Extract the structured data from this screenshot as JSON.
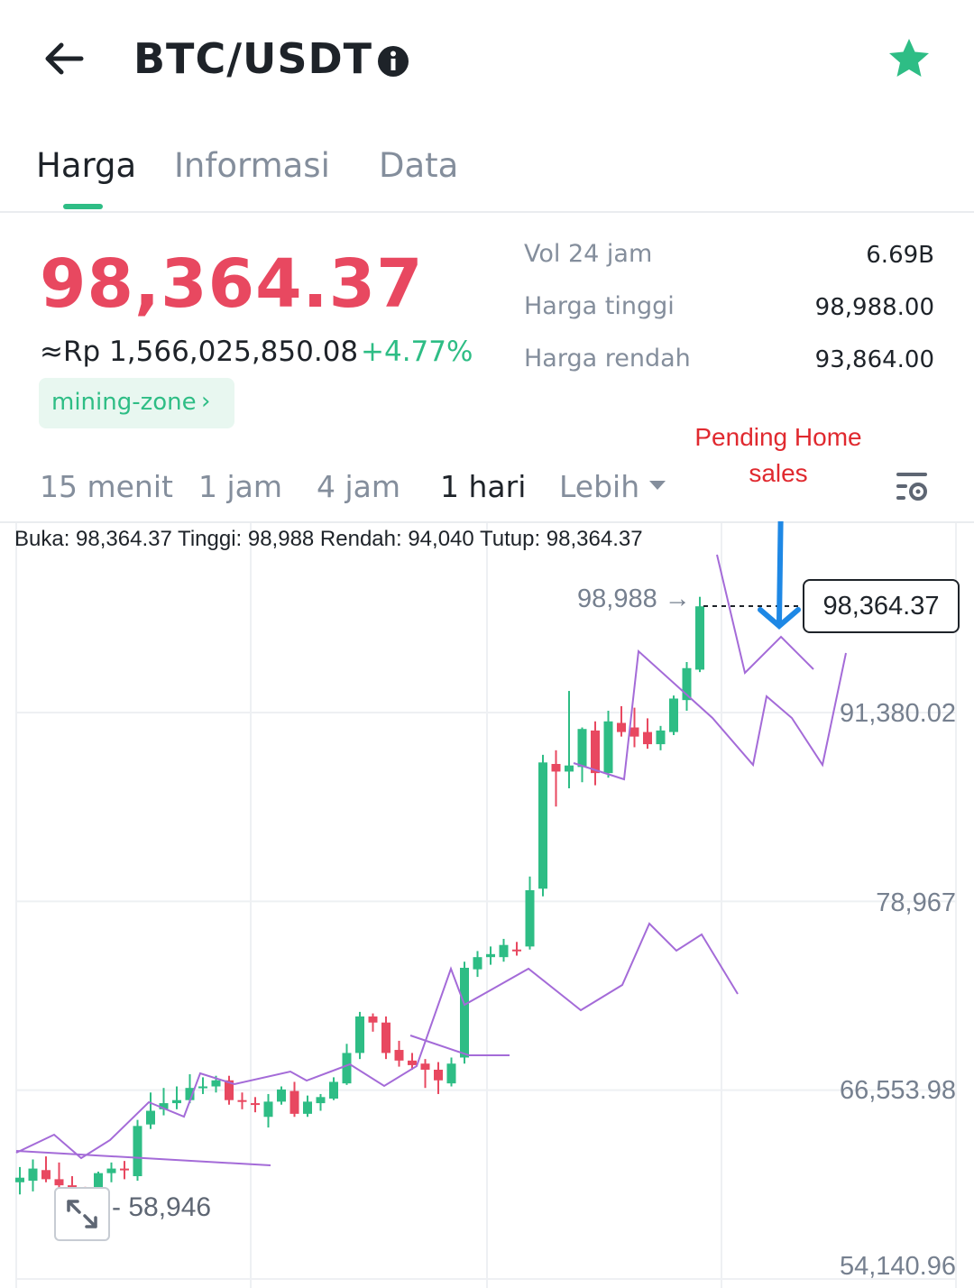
{
  "header": {
    "pair": "BTC/USDT",
    "icons": {
      "back": "arrow-left-icon",
      "info": "info-icon",
      "favorite": "star-icon"
    },
    "favorite_color": "#2ebd85"
  },
  "tabs": [
    {
      "label": "Harga",
      "active": true
    },
    {
      "label": "Informasi",
      "active": false
    },
    {
      "label": "Data",
      "active": false
    }
  ],
  "ticker": {
    "price": "98,364.37",
    "price_color": "#e84860",
    "idr_value": "≈Rp 1,566,025,850.08",
    "change_pct": "+4.77%",
    "change_color": "#2ebd85",
    "tag": "mining-zone",
    "tag_chevron": "›"
  },
  "stats": [
    {
      "label": "Vol 24 jam",
      "value": "6.69B"
    },
    {
      "label": "Harga tinggi",
      "value": "98,988.00"
    },
    {
      "label": "Harga rendah",
      "value": "93,864.00"
    }
  ],
  "timeframes": [
    {
      "label": "15 menit",
      "active": false
    },
    {
      "label": "1 jam",
      "active": false
    },
    {
      "label": "4 jam",
      "active": false
    },
    {
      "label": "1 hari",
      "active": true
    },
    {
      "label": "Lebih",
      "active": false
    }
  ],
  "annotation": {
    "line1": "Pending Home",
    "line2": "sales",
    "color": "#e0292f",
    "arrow_color": "#1e88e5"
  },
  "chart": {
    "ohlc_text": "Buka: 98,364.37 Tinggi: 98,988 Rendah: 94,040 Tutup: 98,364.37",
    "high_label": "98,988 →",
    "current_price": "98,364.37",
    "low_label": "- 58,946",
    "y_axis_labels": [
      "91,380.02",
      "78,967",
      "66,553.98",
      "54,140.96"
    ]
  },
  "chart_data": {
    "type": "candlestick",
    "ylim": [
      54140.96,
      99500
    ],
    "y_ticks": [
      91380.02,
      78967,
      66553.98,
      54140.96
    ],
    "up_color": "#2ebd85",
    "down_color": "#e84860",
    "candles": [
      {
        "o": 60500,
        "h": 61500,
        "l": 59700,
        "c": 60800
      },
      {
        "o": 60600,
        "h": 62000,
        "l": 59900,
        "c": 61400
      },
      {
        "o": 61300,
        "h": 62200,
        "l": 60500,
        "c": 60700
      },
      {
        "o": 60700,
        "h": 61800,
        "l": 59800,
        "c": 60300
      },
      {
        "o": 60300,
        "h": 60900,
        "l": 58946,
        "c": 59200
      },
      {
        "o": 59400,
        "h": 60200,
        "l": 58946,
        "c": 59300
      },
      {
        "o": 59200,
        "h": 61200,
        "l": 58946,
        "c": 61100
      },
      {
        "o": 61100,
        "h": 61800,
        "l": 60500,
        "c": 61400
      },
      {
        "o": 61400,
        "h": 61900,
        "l": 60700,
        "c": 61300
      },
      {
        "o": 60900,
        "h": 64600,
        "l": 60600,
        "c": 64200
      },
      {
        "o": 64300,
        "h": 66400,
        "l": 64000,
        "c": 65200
      },
      {
        "o": 65300,
        "h": 66700,
        "l": 64900,
        "c": 65700
      },
      {
        "o": 65700,
        "h": 66800,
        "l": 65300,
        "c": 65900
      },
      {
        "o": 65900,
        "h": 67600,
        "l": 65700,
        "c": 66700
      },
      {
        "o": 66700,
        "h": 67400,
        "l": 66300,
        "c": 66800
      },
      {
        "o": 66800,
        "h": 67500,
        "l": 66400,
        "c": 67200
      },
      {
        "o": 67200,
        "h": 67500,
        "l": 65600,
        "c": 65900
      },
      {
        "o": 65900,
        "h": 66400,
        "l": 65300,
        "c": 65800
      },
      {
        "o": 65700,
        "h": 66100,
        "l": 65100,
        "c": 65600
      },
      {
        "o": 64800,
        "h": 66300,
        "l": 64100,
        "c": 65800
      },
      {
        "o": 65800,
        "h": 66800,
        "l": 65600,
        "c": 66600
      },
      {
        "o": 66500,
        "h": 67100,
        "l": 64800,
        "c": 65000
      },
      {
        "o": 65000,
        "h": 66200,
        "l": 64800,
        "c": 65800
      },
      {
        "o": 65700,
        "h": 66300,
        "l": 65200,
        "c": 66100
      },
      {
        "o": 66000,
        "h": 67400,
        "l": 65900,
        "c": 67100
      },
      {
        "o": 67000,
        "h": 69600,
        "l": 66900,
        "c": 69000
      },
      {
        "o": 69000,
        "h": 71700,
        "l": 68600,
        "c": 71400
      },
      {
        "o": 71400,
        "h": 71600,
        "l": 70400,
        "c": 71000
      },
      {
        "o": 71000,
        "h": 71400,
        "l": 68600,
        "c": 69000
      },
      {
        "o": 69200,
        "h": 69800,
        "l": 68100,
        "c": 68500
      },
      {
        "o": 68500,
        "h": 69000,
        "l": 67900,
        "c": 68200
      },
      {
        "o": 68300,
        "h": 68600,
        "l": 66700,
        "c": 67900
      },
      {
        "o": 67900,
        "h": 68400,
        "l": 66300,
        "c": 67200
      },
      {
        "o": 67000,
        "h": 68700,
        "l": 66800,
        "c": 68300
      },
      {
        "o": 68700,
        "h": 75000,
        "l": 68300,
        "c": 74600
      },
      {
        "o": 74500,
        "h": 75700,
        "l": 74000,
        "c": 75300
      },
      {
        "o": 75300,
        "h": 76000,
        "l": 74800,
        "c": 75500
      },
      {
        "o": 75300,
        "h": 76500,
        "l": 75000,
        "c": 76100
      },
      {
        "o": 75800,
        "h": 76300,
        "l": 75400,
        "c": 75700
      },
      {
        "o": 76000,
        "h": 80600,
        "l": 75800,
        "c": 79700
      },
      {
        "o": 79800,
        "h": 88600,
        "l": 79300,
        "c": 88100
      },
      {
        "o": 88000,
        "h": 88900,
        "l": 85200,
        "c": 87500
      },
      {
        "o": 87500,
        "h": 92800,
        "l": 86400,
        "c": 87900
      },
      {
        "o": 87800,
        "h": 90400,
        "l": 86800,
        "c": 90300
      },
      {
        "o": 90200,
        "h": 90800,
        "l": 86600,
        "c": 87400
      },
      {
        "o": 87400,
        "h": 91500,
        "l": 87100,
        "c": 90800
      },
      {
        "o": 90700,
        "h": 91800,
        "l": 89800,
        "c": 90100
      },
      {
        "o": 90400,
        "h": 91700,
        "l": 89100,
        "c": 89800
      },
      {
        "o": 90100,
        "h": 91000,
        "l": 89000,
        "c": 89300
      },
      {
        "o": 89300,
        "h": 90500,
        "l": 88900,
        "c": 90200
      },
      {
        "o": 90100,
        "h": 92500,
        "l": 89900,
        "c": 92300
      },
      {
        "o": 92200,
        "h": 94700,
        "l": 91500,
        "c": 94300
      },
      {
        "o": 94200,
        "h": 98988,
        "l": 94040,
        "c": 98364.37
      }
    ]
  }
}
